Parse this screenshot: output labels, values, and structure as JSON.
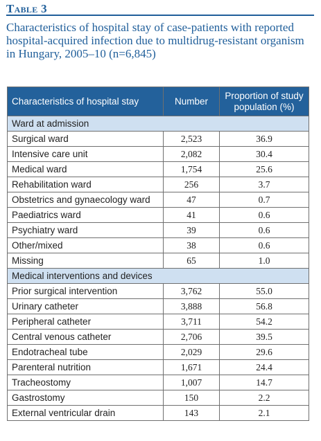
{
  "table_label": "Table 3",
  "caption": "Characteristics of hospital stay of case-patients with reported hospital-acquired infection due to multidrug-resistant organism in Hungary, 2005–10 (n=6,845)",
  "columns": [
    "Characteristics of hospital stay",
    "Number",
    "Proportion of study population (%)"
  ],
  "sections": [
    {
      "title": "Ward at admission",
      "rows": [
        [
          "Surgical ward",
          "2,523",
          "36.9"
        ],
        [
          "Intensive care unit",
          "2,082",
          "30.4"
        ],
        [
          "Medical ward",
          "1,754",
          "25.6"
        ],
        [
          "Rehabilitation ward",
          "256",
          "3.7"
        ],
        [
          "Obstetrics and gynaecology ward",
          "47",
          "0.7"
        ],
        [
          "Paediatrics ward",
          "41",
          "0.6"
        ],
        [
          "Psychiatry ward",
          "39",
          "0.6"
        ],
        [
          "Other/mixed",
          "38",
          "0.6"
        ],
        [
          "Missing",
          "65",
          "1.0"
        ]
      ]
    },
    {
      "title": "Medical interventions and devices",
      "rows": [
        [
          "Prior surgical intervention",
          "3,762",
          "55.0"
        ],
        [
          "Urinary catheter",
          "3,888",
          "56.8"
        ],
        [
          "Peripheral catheter",
          "3,711",
          "54.2"
        ],
        [
          "Central venous catheter",
          "2,706",
          "39.5"
        ],
        [
          "Endotracheal tube",
          "2,029",
          "29.6"
        ],
        [
          "Parenteral nutrition",
          "1,671",
          "24.4"
        ],
        [
          "Tracheostomy",
          "1,007",
          "14.7"
        ],
        [
          "Gastrostomy",
          "150",
          "2.2"
        ],
        [
          "External ventricular drain",
          "143",
          "2.1"
        ]
      ]
    }
  ]
}
